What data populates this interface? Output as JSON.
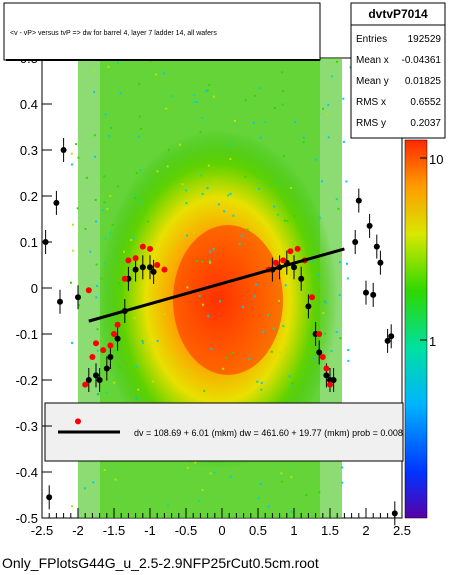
{
  "title": "<v - vP>       versus  tvP =>  dw for barrel 4, layer 7 ladder 14, all wafers",
  "footer": "Only_FPlotsG44G_u_2.5-2.9NFP25rCut0.5cm.root",
  "stats": {
    "name": "dvtvP7014",
    "rows": [
      {
        "label": "Entries",
        "value": "192529"
      },
      {
        "label": "Mean x",
        "value": "-0.04361"
      },
      {
        "label": "Mean y",
        "value": "0.01825"
      },
      {
        "label": "RMS x",
        "value": "0.6552"
      },
      {
        "label": "RMS y",
        "value": "0.2037"
      }
    ]
  },
  "fit_label": "dv =  108.69 +  6.01 (mkm) dw =  461.60 + 19.77 (mkm) prob = 0.008",
  "colors": {
    "fit_line": "#000000",
    "profile_red": "#ff0000",
    "profile_black": "#000000"
  },
  "chart_data": {
    "type": "heatmap",
    "xlim": [
      -2.5,
      2.5
    ],
    "ylim": [
      -0.5,
      0.5
    ],
    "x_ticks": [
      "-2.5",
      "-2",
      "-1.5",
      "-1",
      "-0.5",
      "0",
      "0.5",
      "1",
      "1.5",
      "2",
      "2.5"
    ],
    "y_ticks": [
      "-0.5",
      "-0.4",
      "-0.3",
      "-0.2",
      "-0.1",
      "0",
      "0.1",
      "0.2",
      "0.3",
      "0.4",
      "0.5"
    ],
    "z_ticks": [
      "1",
      "10"
    ],
    "fit_line": {
      "x": [
        -1.85,
        1.7
      ],
      "y": [
        -0.072,
        0.085
      ]
    },
    "profile_black": [
      {
        "x": -2.45,
        "y": 0.1
      },
      {
        "x": -2.3,
        "y": 0.185
      },
      {
        "x": -2.2,
        "y": 0.3
      },
      {
        "x": -2.25,
        "y": -0.03
      },
      {
        "x": -2.0,
        "y": -0.02
      },
      {
        "x": -1.85,
        "y": -0.2
      },
      {
        "x": -1.75,
        "y": -0.19
      },
      {
        "x": -1.7,
        "y": -0.2
      },
      {
        "x": -1.6,
        "y": -0.175
      },
      {
        "x": -1.55,
        "y": -0.15
      },
      {
        "x": -1.45,
        "y": -0.11
      },
      {
        "x": -1.35,
        "y": -0.05
      },
      {
        "x": -1.3,
        "y": 0.02
      },
      {
        "x": -1.2,
        "y": 0.04
      },
      {
        "x": -1.1,
        "y": 0.045
      },
      {
        "x": -1.0,
        "y": 0.045
      },
      {
        "x": -0.95,
        "y": 0.035
      },
      {
        "x": 0.7,
        "y": 0.04
      },
      {
        "x": 0.8,
        "y": 0.045
      },
      {
        "x": 0.9,
        "y": 0.055
      },
      {
        "x": 1.0,
        "y": 0.045
      },
      {
        "x": 1.1,
        "y": 0.02
      },
      {
        "x": 1.2,
        "y": -0.04
      },
      {
        "x": 1.3,
        "y": -0.1
      },
      {
        "x": 1.35,
        "y": -0.14
      },
      {
        "x": 1.45,
        "y": -0.19
      },
      {
        "x": 1.5,
        "y": -0.2
      },
      {
        "x": 1.55,
        "y": -0.2
      },
      {
        "x": 1.9,
        "y": 0.19
      },
      {
        "x": 2.0,
        "y": -0.01
      },
      {
        "x": 2.05,
        "y": 0.135
      },
      {
        "x": 2.1,
        "y": -0.015
      },
      {
        "x": 2.15,
        "y": 0.09
      },
      {
        "x": 2.2,
        "y": 0.055
      },
      {
        "x": 2.3,
        "y": -0.115
      },
      {
        "x": 2.35,
        "y": -0.105
      },
      {
        "x": -2.4,
        "y": -0.455
      },
      {
        "x": 2.4,
        "y": -0.49
      },
      {
        "x": 1.85,
        "y": 0.1
      }
    ],
    "profile_red": [
      {
        "x": -1.85,
        "y": -0.005
      },
      {
        "x": -1.8,
        "y": -0.15
      },
      {
        "x": -1.75,
        "y": -0.12
      },
      {
        "x": -1.65,
        "y": -0.135
      },
      {
        "x": -1.55,
        "y": -0.125
      },
      {
        "x": -1.5,
        "y": -0.1
      },
      {
        "x": -1.45,
        "y": -0.08
      },
      {
        "x": -1.35,
        "y": 0.02
      },
      {
        "x": -1.3,
        "y": 0.06
      },
      {
        "x": -1.2,
        "y": 0.065
      },
      {
        "x": -1.1,
        "y": 0.09
      },
      {
        "x": -1.0,
        "y": 0.085
      },
      {
        "x": -0.9,
        "y": 0.05
      },
      {
        "x": -0.8,
        "y": 0.04
      },
      {
        "x": 0.65,
        "y": 0.04
      },
      {
        "x": 0.75,
        "y": 0.055
      },
      {
        "x": 0.85,
        "y": 0.06
      },
      {
        "x": 0.95,
        "y": 0.08
      },
      {
        "x": 1.05,
        "y": 0.085
      },
      {
        "x": 1.15,
        "y": 0.06
      },
      {
        "x": 1.25,
        "y": -0.02
      },
      {
        "x": 1.35,
        "y": -0.1
      },
      {
        "x": 1.4,
        "y": -0.15
      },
      {
        "x": 1.45,
        "y": -0.175
      },
      {
        "x": 1.5,
        "y": -0.21
      },
      {
        "x": -1.9,
        "y": -0.21
      },
      {
        "x": -2.0,
        "y": -0.29
      }
    ]
  }
}
